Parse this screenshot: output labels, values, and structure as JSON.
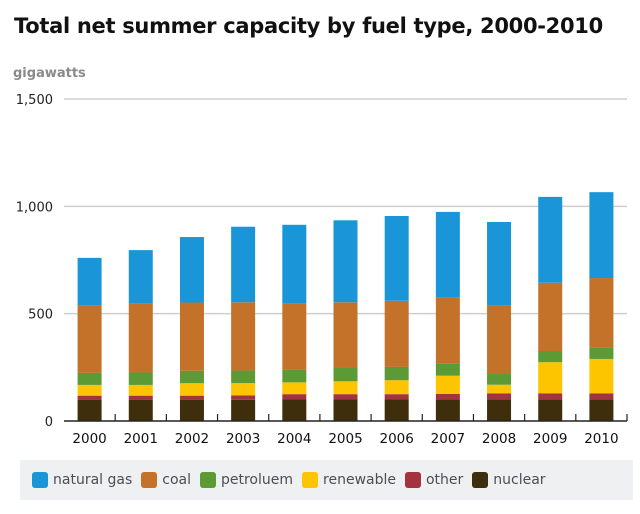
{
  "chart_data": {
    "type": "bar",
    "stacked": true,
    "title": "Total net summer capacity by fuel type, 2000-2010",
    "ylabel": "gigawatts",
    "xlabel": "",
    "ylim": [
      0,
      1500
    ],
    "yticks": [
      0,
      500,
      1000,
      1500
    ],
    "ytick_labels": [
      "0",
      "500",
      "1,000",
      "1,500"
    ],
    "grid": true,
    "legend_position": "bottom",
    "categories": [
      "2000",
      "2001",
      "2002",
      "2003",
      "2004",
      "2005",
      "2006",
      "2007",
      "2008",
      "2009",
      "2010"
    ],
    "series": [
      {
        "name": "nuclear",
        "color": "#3e2e0b",
        "values": [
          98,
          98,
          98,
          99,
          100,
          100,
          100,
          101,
          101,
          101,
          101
        ]
      },
      {
        "name": "other",
        "color": "#a3333e",
        "values": [
          20,
          20,
          20,
          20,
          25,
          25,
          25,
          25,
          28,
          28,
          28
        ]
      },
      {
        "name": "renewable",
        "color": "#fcc500",
        "values": [
          50,
          50,
          58,
          58,
          55,
          60,
          65,
          85,
          40,
          145,
          160
        ]
      },
      {
        "name": "petroluem",
        "color": "#5c9a36",
        "values": [
          56,
          58,
          58,
          58,
          58,
          62,
          62,
          58,
          50,
          52,
          55
        ]
      },
      {
        "name": "coal",
        "color": "#c4712a",
        "values": [
          316,
          322,
          318,
          318,
          308,
          306,
          308,
          305,
          318,
          318,
          322
        ]
      },
      {
        "name": "natural gas",
        "color": "#1a96d8",
        "values": [
          220,
          248,
          305,
          352,
          368,
          382,
          395,
          400,
          390,
          400,
          400
        ]
      }
    ],
    "legend_order": [
      "natural gas",
      "coal",
      "petroluem",
      "renewable",
      "other",
      "nuclear"
    ]
  }
}
